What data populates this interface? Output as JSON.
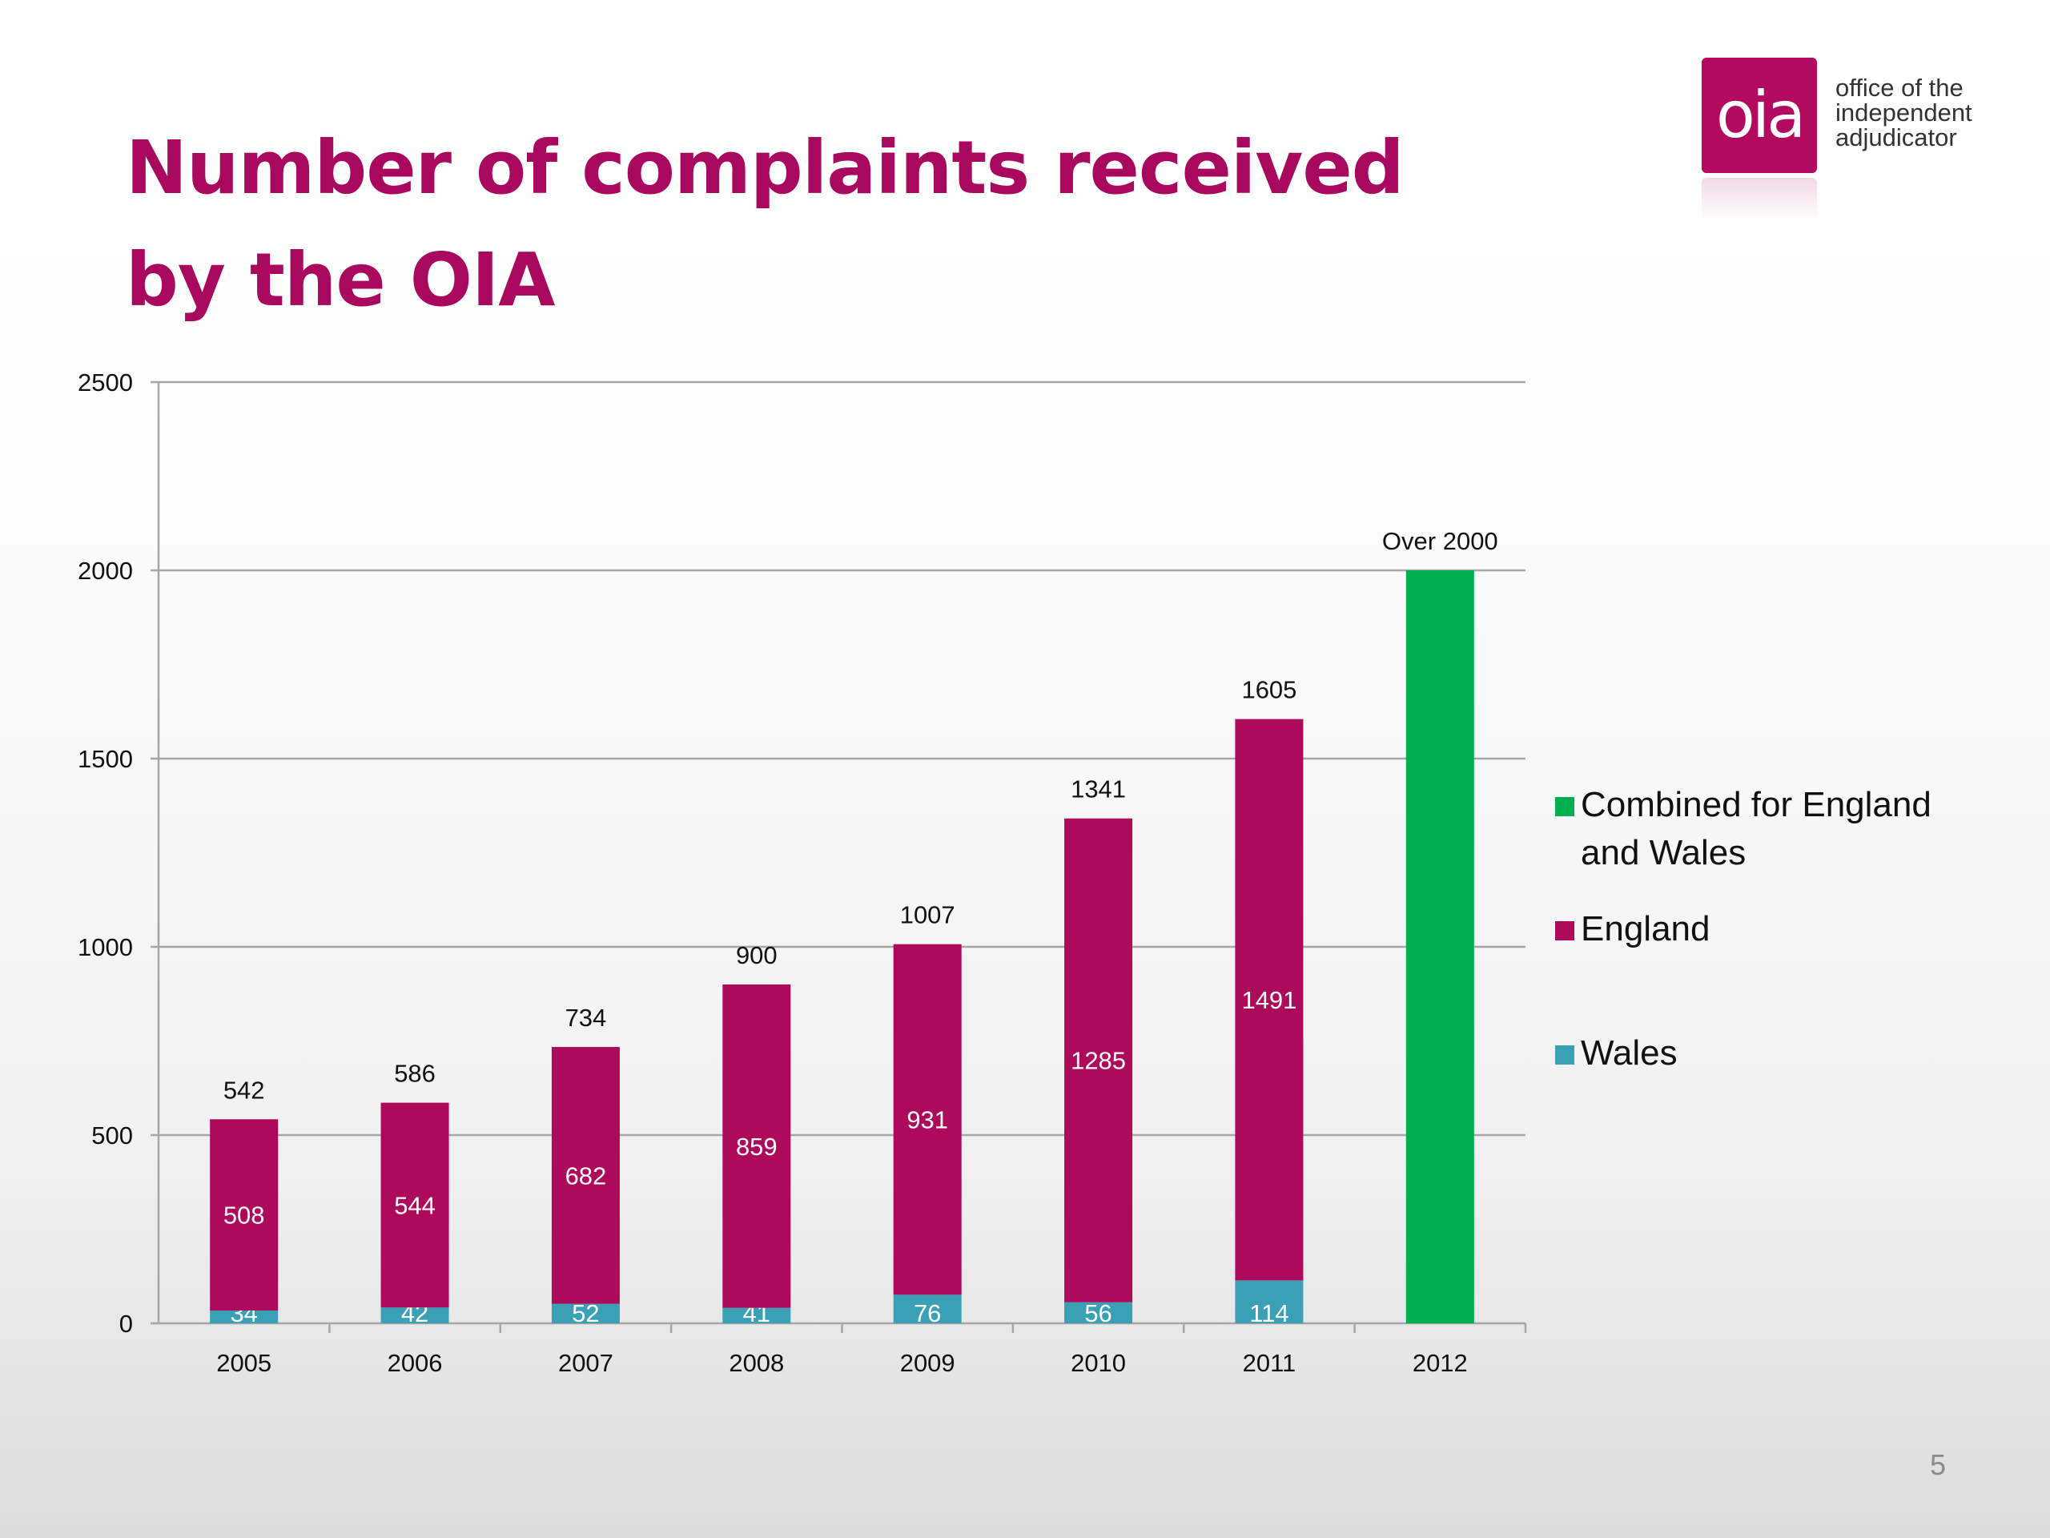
{
  "title": "Number of complaints received by the OIA",
  "logo": {
    "mark": "oia",
    "text_lines": [
      "office of the",
      "independent",
      "adjudicator"
    ]
  },
  "page_number": "5",
  "colors": {
    "title": "#a8085d",
    "england": "#ae0a5c",
    "wales": "#3aa0b5",
    "combined": "#00b050",
    "grid": "#a6a6a6",
    "logo": "#b10a5f"
  },
  "chart_data": {
    "type": "bar",
    "stacked": true,
    "categories": [
      "2005",
      "2006",
      "2007",
      "2008",
      "2009",
      "2010",
      "2011",
      "2012"
    ],
    "series": [
      {
        "name": "Wales",
        "color": "#3aa0b5",
        "values": [
          34,
          42,
          52,
          41,
          76,
          56,
          114,
          null
        ]
      },
      {
        "name": "England",
        "color": "#ae0a5c",
        "values": [
          508,
          544,
          682,
          859,
          931,
          1285,
          1491,
          null
        ]
      },
      {
        "name": "Combined for England and Wales",
        "color": "#00b050",
        "values": [
          null,
          null,
          null,
          null,
          null,
          null,
          null,
          2000
        ]
      }
    ],
    "totals": [
      "542",
      "586",
      "734",
      "900",
      "1007",
      "1341",
      "1605",
      "Over 2000"
    ],
    "ylim": [
      0,
      2500
    ],
    "yticks": [
      0,
      500,
      1000,
      1500,
      2000,
      2500
    ],
    "grid": true,
    "legend": {
      "placement": "right",
      "items": [
        {
          "label": "Combined for England and Wales",
          "color": "#00b050"
        },
        {
          "label": "England",
          "color": "#ae0a5c"
        },
        {
          "label": "Wales",
          "color": "#3aa0b5"
        }
      ]
    }
  }
}
